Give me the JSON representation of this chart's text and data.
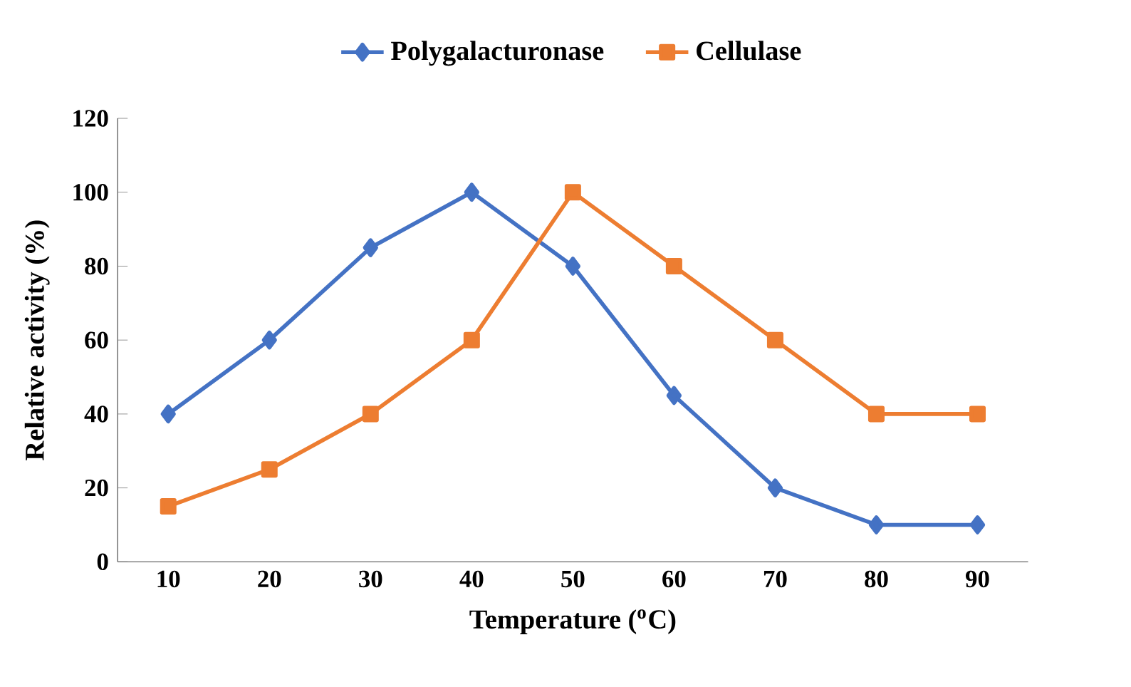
{
  "chart_data": {
    "type": "line",
    "xlabel": "Temperature ($^{o}$C)",
    "ylabel": "Relative activity (%)",
    "categories": [
      "10",
      "20",
      "30",
      "40",
      "50",
      "60",
      "70",
      "80",
      "90"
    ],
    "series": [
      {
        "name": "Polygalacturonase",
        "color": "#4472c4",
        "marker": "diamond",
        "values": [
          40,
          60,
          85,
          100,
          80,
          45,
          20,
          10,
          10
        ]
      },
      {
        "name": "Cellulase",
        "color": "#ed7d31",
        "marker": "square",
        "values": [
          15,
          25,
          40,
          60,
          100,
          80,
          60,
          40,
          40
        ]
      }
    ],
    "ylim": [
      0,
      120
    ],
    "yticks": [
      0,
      20,
      40,
      60,
      80,
      100,
      120
    ],
    "grid": false,
    "legend": "top",
    "line_style": "solid"
  }
}
